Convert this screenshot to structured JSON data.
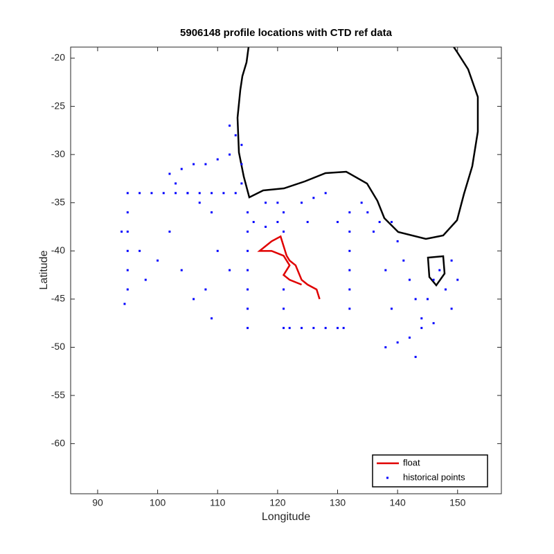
{
  "chart_data": {
    "type": "scatter",
    "title": "5906148 profile locations with CTD ref data",
    "xlabel": "Longitude",
    "ylabel": "Latitude",
    "xlim": [
      85.5,
      157.3
    ],
    "ylim": [
      -65.2,
      -18.85
    ],
    "xticks": [
      90,
      100,
      110,
      120,
      130,
      140,
      150
    ],
    "yticks": [
      -20,
      -25,
      -30,
      -35,
      -40,
      -45,
      -50,
      -55,
      -60
    ],
    "legend": "lower right",
    "series": [
      {
        "name": "float",
        "color": "#e00000",
        "mode": "line",
        "x": [
          127,
          126.5,
          125,
          124,
          123,
          122,
          121.5,
          121,
          120.5,
          119,
          118,
          117,
          119,
          121,
          122,
          121,
          122,
          124
        ],
        "y": [
          -45,
          -44,
          -43.5,
          -43,
          -41.5,
          -41,
          -40.5,
          -39.5,
          -38.5,
          -39,
          -39.5,
          -40,
          -40,
          -40.5,
          -41.5,
          -42.5,
          -43,
          -43.5
        ]
      },
      {
        "name": "historical points",
        "color": "#0000ff",
        "mode": "points",
        "x": [
          95,
          97,
          99,
          101,
          103,
          105,
          107,
          109,
          111,
          113,
          95,
          95,
          95,
          95,
          95,
          115,
          115,
          115,
          115,
          115,
          115,
          115,
          121,
          121,
          121,
          121,
          121,
          132,
          132,
          132,
          132,
          132,
          132,
          122,
          124,
          126,
          128,
          130,
          102,
          104,
          106,
          108,
          110,
          112,
          114,
          114,
          114,
          113,
          112,
          103,
          105,
          107,
          109,
          139,
          140,
          141,
          142,
          143,
          144,
          145,
          146,
          147,
          148,
          149,
          150,
          149,
          143,
          142,
          140,
          138,
          144,
          146,
          135,
          137,
          134,
          128,
          126,
          124,
          118,
          120,
          100,
          98,
          104,
          102,
          108,
          110,
          109,
          106,
          94,
          94.5,
          97,
          112,
          130,
          125,
          136,
          138,
          139,
          131,
          116,
          118,
          120
        ],
        "y": [
          -34,
          -34,
          -34,
          -34,
          -34,
          -34,
          -34,
          -34,
          -34,
          -34,
          -36,
          -38,
          -40,
          -42,
          -44,
          -36,
          -38,
          -40,
          -42,
          -44,
          -46,
          -48,
          -36,
          -38,
          -44,
          -46,
          -48,
          -36,
          -38,
          -40,
          -42,
          -44,
          -46,
          -48,
          -48,
          -48,
          -48,
          -48,
          -32,
          -31.5,
          -31,
          -31,
          -30.5,
          -30,
          -29,
          -31,
          -33,
          -28,
          -27,
          -33,
          -34,
          -35,
          -36,
          -37,
          -39,
          -41,
          -43,
          -45,
          -47,
          -45,
          -43,
          -42,
          -44,
          -41,
          -43,
          -46,
          -51,
          -49,
          -49.5,
          -50,
          -48,
          -47.5,
          -36,
          -37,
          -35,
          -34,
          -34.5,
          -35,
          -35,
          -35,
          -41,
          -43,
          -42,
          -38,
          -44,
          -40,
          -47,
          -45,
          -38,
          -45.5,
          -40,
          -42,
          -37,
          -37,
          -38,
          -42,
          -46,
          -48,
          -37,
          -37.5,
          -37
        ]
      }
    ]
  }
}
